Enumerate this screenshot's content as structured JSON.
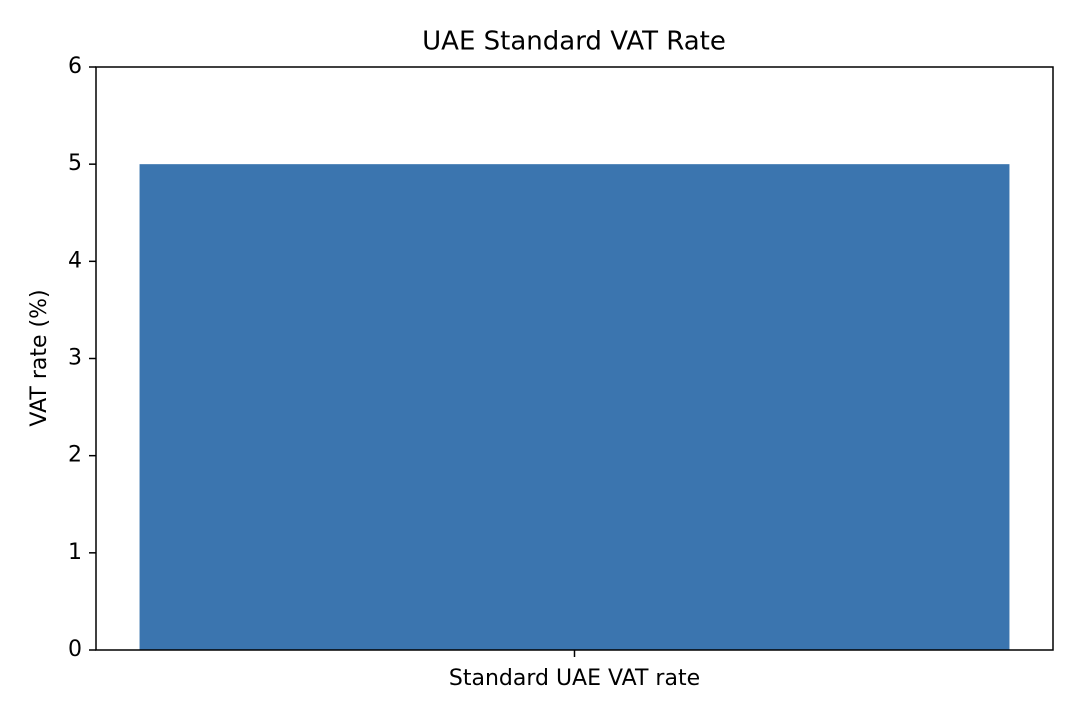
{
  "chart_data": {
    "type": "bar",
    "title": "UAE Standard VAT Rate",
    "y_label": "VAT rate (%)",
    "categories": [
      "Standard UAE VAT rate"
    ],
    "values": [
      5
    ],
    "color": "#3b75af",
    "ylim": [
      0,
      6
    ],
    "yticks": [
      0,
      1,
      2,
      3,
      4,
      5,
      6
    ],
    "grid": false
  }
}
